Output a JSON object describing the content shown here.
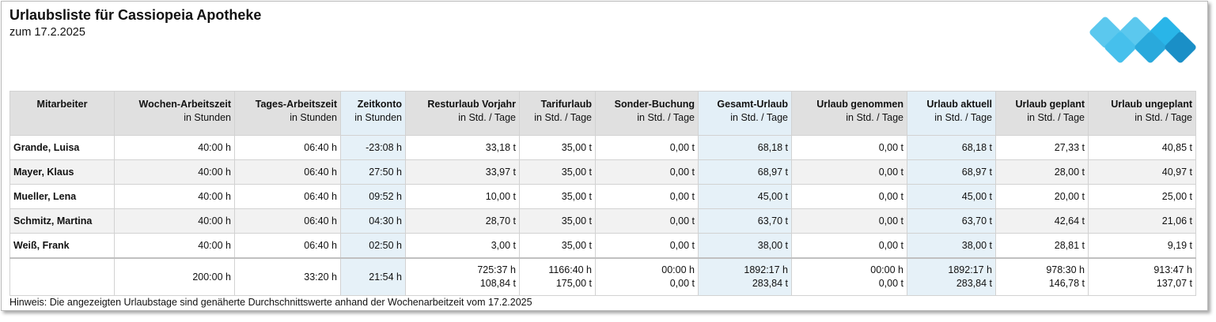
{
  "report": {
    "title": "Urlaubsliste für Cassiopeia Apotheke",
    "subtitle": "zum 17.2.2025",
    "note": "Hinweis: Die angezeigten Urlaubstage sind genäherte Durchschnittswerte anhand der Wochenarbeitzeit vom 17.2.2025"
  },
  "logo": {
    "icon": "blue-diamonds-logo",
    "colors": [
      "#5bc8ee",
      "#29a9dc",
      "#1a8fc7"
    ]
  },
  "colors": {
    "header_bg": "#e0e0e0",
    "highlight_col": "#e6f1f8",
    "alt_row": "#f2f2f2"
  },
  "columns": [
    {
      "label": "Mitarbeiter",
      "unit": ""
    },
    {
      "label": "Wochen-Arbeitszeit",
      "unit": "in Stunden"
    },
    {
      "label": "Tages-Arbeitszeit",
      "unit": "in Stunden"
    },
    {
      "label": "Zeitkonto",
      "unit": "in Stunden"
    },
    {
      "label": "Resturlaub Vorjahr",
      "unit": "in Std. / Tage"
    },
    {
      "label": "Tarifurlaub",
      "unit": "in Std. / Tage"
    },
    {
      "label": "Sonder-Buchung",
      "unit": "in Std. / Tage"
    },
    {
      "label": "Gesamt-Urlaub",
      "unit": "in Std. / Tage"
    },
    {
      "label": "Urlaub genommen",
      "unit": "in Std. / Tage"
    },
    {
      "label": "Urlaub aktuell",
      "unit": "in Std. / Tage"
    },
    {
      "label": "Urlaub geplant",
      "unit": "in Std. / Tage"
    },
    {
      "label": "Urlaub ungeplant",
      "unit": "in Std. / Tage"
    }
  ],
  "rows": [
    [
      "Grande, Luisa",
      "40:00 h",
      "06:40 h",
      "-23:08 h",
      "33,18 t",
      "35,00 t",
      "0,00 t",
      "68,18 t",
      "0,00 t",
      "68,18 t",
      "27,33 t",
      "40,85 t"
    ],
    [
      "Mayer, Klaus",
      "40:00 h",
      "06:40 h",
      "27:50 h",
      "33,97 t",
      "35,00 t",
      "0,00 t",
      "68,97 t",
      "0,00 t",
      "68,97 t",
      "28,00 t",
      "40,97 t"
    ],
    [
      "Mueller, Lena",
      "40:00 h",
      "06:40 h",
      "09:52 h",
      "10,00 t",
      "35,00 t",
      "0,00 t",
      "45,00 t",
      "0,00 t",
      "45,00 t",
      "20,00 t",
      "25,00 t"
    ],
    [
      "Schmitz, Martina",
      "40:00 h",
      "06:40 h",
      "04:30 h",
      "28,70 t",
      "35,00 t",
      "0,00 t",
      "63,70 t",
      "0,00 t",
      "63,70 t",
      "42,64 t",
      "21,06 t"
    ],
    [
      "Weiß, Frank",
      "40:00 h",
      "06:40 h",
      "02:50 h",
      "3,00 t",
      "35,00 t",
      "0,00 t",
      "38,00 t",
      "0,00 t",
      "38,00 t",
      "28,81 t",
      "9,19 t"
    ]
  ],
  "totals": [
    [
      "",
      ""
    ],
    [
      "200:00 h",
      ""
    ],
    [
      "33:20 h",
      ""
    ],
    [
      "21:54 h",
      ""
    ],
    [
      "725:37 h",
      "108,84 t"
    ],
    [
      "1166:40 h",
      "175,00 t"
    ],
    [
      "00:00 h",
      "0,00 t"
    ],
    [
      "1892:17 h",
      "283,84 t"
    ],
    [
      "00:00 h",
      "0,00 t"
    ],
    [
      "1892:17 h",
      "283,84 t"
    ],
    [
      "978:30 h",
      "146,78 t"
    ],
    [
      "913:47 h",
      "137,07 t"
    ]
  ]
}
